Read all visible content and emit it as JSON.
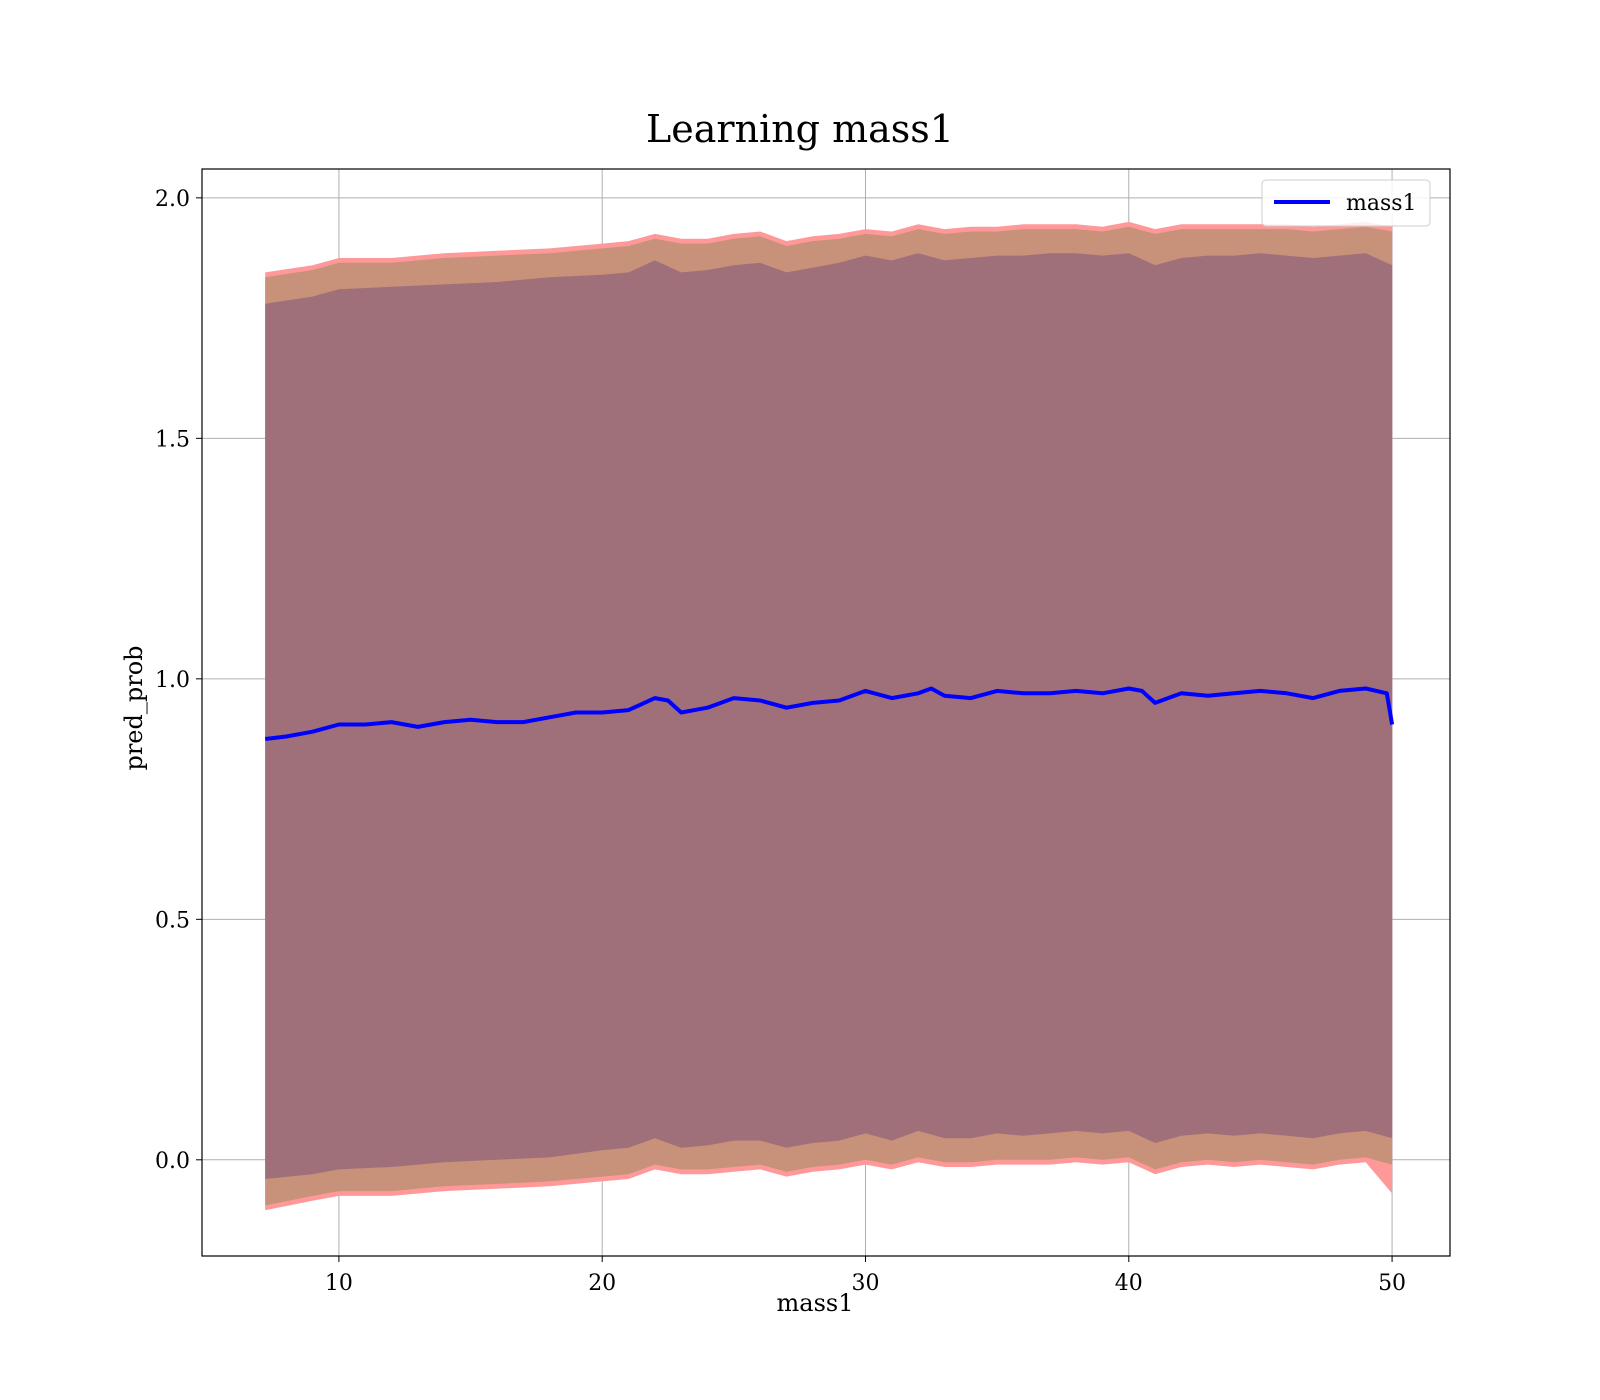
{
  "colors": {
    "line": "#0000ff",
    "outer_band": "#ff9999",
    "middle_band": "#c8917a",
    "inner_band": "#a0707a",
    "grid": "#b0b0b0"
  },
  "chart_data": {
    "type": "line",
    "title": "Learning mass1",
    "xlabel": "mass1",
    "ylabel": "pred_prob",
    "xlim": [
      4.8,
      52.2
    ],
    "ylim": [
      -0.2,
      2.06
    ],
    "xticks": [
      10,
      20,
      30,
      40,
      50
    ],
    "xtick_labels": [
      "10",
      "20",
      "30",
      "40",
      "50"
    ],
    "yticks": [
      0.0,
      0.5,
      1.0,
      1.5,
      2.0
    ],
    "ytick_labels": [
      "0.0",
      "0.5",
      "1.0",
      "1.5",
      "2.0"
    ],
    "grid": true,
    "legend": {
      "position": "top-right",
      "entries": [
        "mass1"
      ]
    },
    "series": [
      {
        "name": "mass1",
        "x": [
          7.2,
          8,
          9,
          10,
          11,
          12,
          13,
          14,
          15,
          16,
          17,
          18,
          19,
          20,
          21,
          22,
          22.5,
          23,
          24,
          25,
          26,
          27,
          28,
          29,
          30,
          31,
          32,
          32.5,
          33,
          34,
          35,
          36,
          37,
          38,
          39,
          40,
          40.5,
          41,
          42,
          43,
          44,
          45,
          46,
          47,
          48,
          49,
          49.8,
          50
        ],
        "y": [
          0.875,
          0.88,
          0.89,
          0.905,
          0.905,
          0.91,
          0.9,
          0.91,
          0.915,
          0.91,
          0.91,
          0.92,
          0.93,
          0.93,
          0.935,
          0.96,
          0.955,
          0.93,
          0.94,
          0.96,
          0.955,
          0.94,
          0.95,
          0.955,
          0.975,
          0.96,
          0.97,
          0.98,
          0.965,
          0.96,
          0.975,
          0.97,
          0.97,
          0.975,
          0.97,
          0.98,
          0.975,
          0.95,
          0.97,
          0.965,
          0.97,
          0.975,
          0.97,
          0.96,
          0.975,
          0.98,
          0.97,
          0.905
        ]
      }
    ],
    "bands": {
      "x": [
        7.2,
        9,
        10,
        12,
        14,
        16,
        18,
        20,
        21,
        22,
        23,
        24,
        25,
        26,
        27,
        28,
        29,
        30,
        31,
        32,
        33,
        34,
        35,
        36,
        37,
        38,
        39,
        40,
        41,
        42,
        43,
        44,
        45,
        46,
        47,
        48,
        49,
        50
      ],
      "outer_upper": [
        1.845,
        1.86,
        1.875,
        1.875,
        1.885,
        1.89,
        1.895,
        1.905,
        1.91,
        1.925,
        1.915,
        1.915,
        1.925,
        1.93,
        1.91,
        1.92,
        1.925,
        1.935,
        1.93,
        1.945,
        1.935,
        1.94,
        1.94,
        1.945,
        1.945,
        1.945,
        1.94,
        1.95,
        1.935,
        1.945,
        1.945,
        1.945,
        1.945,
        1.945,
        1.94,
        1.945,
        1.95,
        1.94
      ],
      "middle_upper": [
        1.835,
        1.85,
        1.865,
        1.865,
        1.875,
        1.88,
        1.885,
        1.895,
        1.9,
        1.915,
        1.905,
        1.905,
        1.915,
        1.92,
        1.9,
        1.91,
        1.915,
        1.925,
        1.92,
        1.935,
        1.925,
        1.93,
        1.93,
        1.935,
        1.935,
        1.935,
        1.93,
        1.94,
        1.925,
        1.935,
        1.935,
        1.935,
        1.935,
        1.935,
        1.93,
        1.935,
        1.94,
        1.93
      ],
      "inner_upper": [
        1.78,
        1.795,
        1.81,
        1.815,
        1.82,
        1.825,
        1.835,
        1.84,
        1.845,
        1.87,
        1.845,
        1.85,
        1.86,
        1.865,
        1.845,
        1.855,
        1.865,
        1.88,
        1.87,
        1.885,
        1.87,
        1.875,
        1.88,
        1.88,
        1.885,
        1.885,
        1.88,
        1.885,
        1.86,
        1.875,
        1.88,
        1.88,
        1.885,
        1.88,
        1.875,
        1.88,
        1.885,
        1.86
      ],
      "inner_lower": [
        -0.04,
        -0.03,
        -0.02,
        -0.015,
        -0.005,
        0.0,
        0.005,
        0.02,
        0.025,
        0.045,
        0.025,
        0.03,
        0.04,
        0.04,
        0.025,
        0.035,
        0.04,
        0.055,
        0.04,
        0.06,
        0.045,
        0.045,
        0.055,
        0.05,
        0.055,
        0.06,
        0.055,
        0.06,
        0.035,
        0.05,
        0.055,
        0.05,
        0.055,
        0.05,
        0.045,
        0.055,
        0.06,
        0.045
      ],
      "middle_lower": [
        -0.095,
        -0.075,
        -0.065,
        -0.065,
        -0.055,
        -0.05,
        -0.045,
        -0.035,
        -0.03,
        -0.01,
        -0.02,
        -0.02,
        -0.015,
        -0.01,
        -0.025,
        -0.015,
        -0.01,
        0.0,
        -0.01,
        0.005,
        -0.005,
        -0.005,
        0.0,
        0.0,
        0.0,
        0.005,
        0.0,
        0.005,
        -0.02,
        -0.005,
        0.0,
        -0.005,
        0.0,
        -0.005,
        -0.01,
        0.0,
        0.005,
        -0.01
      ],
      "outer_lower": [
        -0.105,
        -0.085,
        -0.075,
        -0.075,
        -0.065,
        -0.06,
        -0.055,
        -0.045,
        -0.04,
        -0.02,
        -0.03,
        -0.03,
        -0.025,
        -0.02,
        -0.035,
        -0.025,
        -0.02,
        -0.01,
        -0.02,
        -0.005,
        -0.015,
        -0.015,
        -0.01,
        -0.01,
        -0.01,
        -0.005,
        -0.01,
        -0.005,
        -0.03,
        -0.015,
        -0.01,
        -0.015,
        -0.01,
        -0.015,
        -0.02,
        -0.01,
        -0.005,
        -0.07
      ]
    }
  }
}
